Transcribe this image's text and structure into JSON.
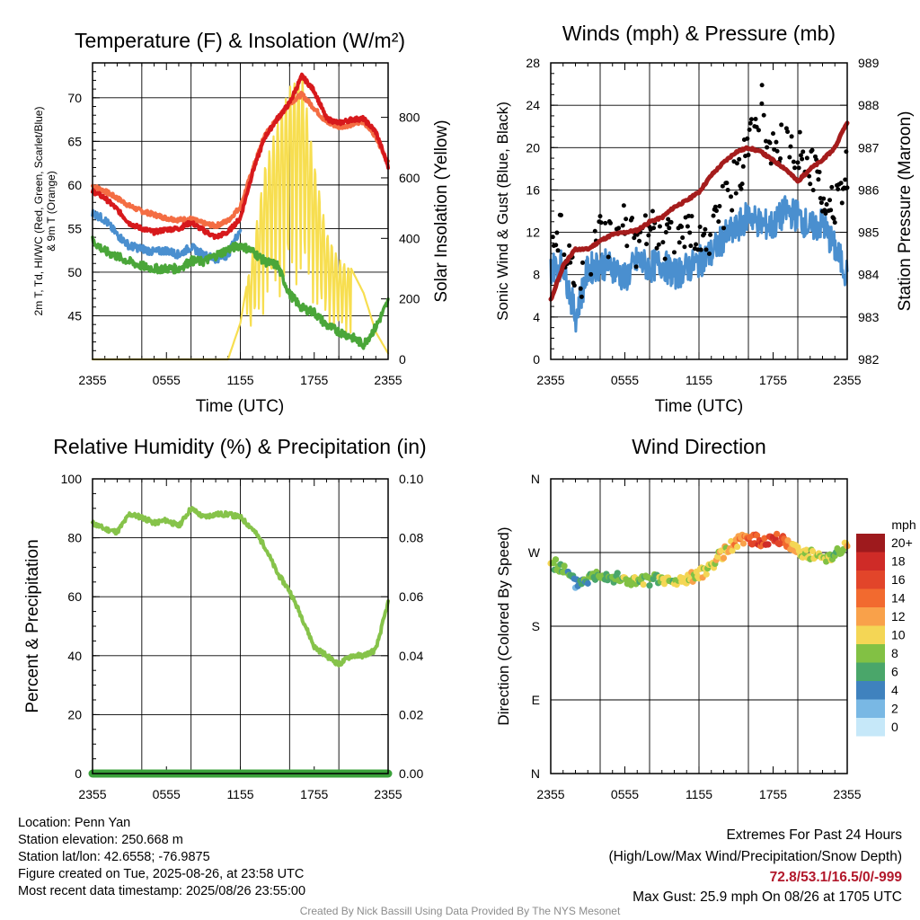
{
  "ticks": {
    "x_labels": [
      "2355",
      "0555",
      "1155",
      "1755",
      "2355"
    ],
    "x_title": "Time (UTC)"
  },
  "chart_data": [
    {
      "type": "line",
      "title": "Temperature (F) & Insolation (W/m²)",
      "xlabel": "Time (UTC)",
      "ylabel_left": "2m T, Td, HI/WC (Red, Green, Scarlet/Blue) & 9m T (Orange)",
      "ylabel_right": "Solar Insolation (Yellow)",
      "ylim_left": [
        40,
        74
      ],
      "ylim_right": [
        0,
        980
      ],
      "yticks_left": [
        45,
        50,
        55,
        60,
        65,
        70
      ],
      "yticks_right": [
        0,
        200,
        400,
        600,
        800
      ],
      "x_hours": [
        0,
        1,
        2,
        3,
        4,
        5,
        6,
        7,
        8,
        9,
        10,
        11,
        12,
        13,
        14,
        15,
        16,
        17,
        18,
        19,
        20,
        21,
        22,
        23,
        24
      ],
      "series": [
        {
          "name": "9m T",
          "color": "#f46d43",
          "values": [
            59.9,
            59.3,
            58.5,
            57.6,
            57.0,
            56.6,
            56.2,
            56.0,
            56.1,
            55.6,
            55.3,
            55.9,
            57.5,
            61.8,
            65.8,
            67.5,
            69.4,
            70.4,
            68.8,
            67.2,
            66.7,
            66.9,
            67.3,
            65.6,
            62.5
          ]
        },
        {
          "name": "2m T",
          "color": "#d7191c",
          "values": [
            59.3,
            58.5,
            57.2,
            55.6,
            55.0,
            54.6,
            54.9,
            55.0,
            55.7,
            54.8,
            54.0,
            54.6,
            56.2,
            61.5,
            65.5,
            67.6,
            69.4,
            72.5,
            70.8,
            67.6,
            67.1,
            67.5,
            67.6,
            66.1,
            62.2
          ]
        },
        {
          "name": "HI/WC",
          "color": "#4a8fcf",
          "values": [
            56.8,
            56.0,
            54.3,
            53.0,
            52.7,
            52.3,
            52.5,
            52.0,
            52.9,
            52.0,
            51.5,
            52.0,
            55.0
          ]
        },
        {
          "name": "2m Td",
          "color": "#4aa639",
          "values": [
            53.6,
            52.4,
            51.8,
            51.2,
            50.7,
            50.4,
            50.4,
            50.4,
            51.3,
            51.2,
            51.9,
            52.6,
            53.1,
            52.4,
            51.2,
            50.8,
            47.5,
            45.9,
            45.4,
            43.9,
            43.2,
            42.6,
            41.7,
            43.7,
            46.6
          ]
        },
        {
          "name": "Solar",
          "color": "#f7de50",
          "values": [
            0,
            0,
            0,
            0,
            0,
            0,
            0,
            0,
            0,
            0,
            0,
            0,
            120,
            360,
            640,
            780,
            900,
            950,
            650,
            420,
            330,
            300,
            220,
            90,
            20
          ]
        }
      ]
    },
    {
      "type": "line",
      "title": "Winds (mph) & Pressure (mb)",
      "xlabel": "Time (UTC)",
      "ylabel_left": "Sonic Wind & Gust (Blue, Black)",
      "ylabel_right": "Station Pressure (Maroon)",
      "ylim_left": [
        0,
        28
      ],
      "ylim_right": [
        982,
        989
      ],
      "yticks_left": [
        0,
        4,
        8,
        12,
        16,
        20,
        24,
        28
      ],
      "yticks_right": [
        982,
        983,
        984,
        985,
        986,
        987,
        988,
        989
      ],
      "x_hours": [
        0,
        1,
        2,
        3,
        4,
        5,
        6,
        7,
        8,
        9,
        10,
        11,
        12,
        13,
        14,
        15,
        16,
        17,
        18,
        19,
        20,
        21,
        22,
        23,
        24
      ],
      "series": [
        {
          "name": "Sonic Wind",
          "color": "#4a8fcf",
          "values": [
            8.6,
            9.0,
            4.0,
            8.5,
            9.0,
            8.8,
            7.6,
            9.3,
            8.7,
            9.1,
            8.0,
            8.6,
            9.2,
            10.0,
            11.5,
            12.2,
            13.7,
            12.8,
            12.6,
            14.0,
            13.6,
            12.4,
            12.8,
            10.5,
            8.0
          ]
        },
        {
          "name": "Gust",
          "color": "#000000",
          "values": [
            10.5,
            11.7,
            6.5,
            9.8,
            11.6,
            11.9,
            12.7,
            10.5,
            12.3,
            11.7,
            11.0,
            11.9,
            11.4,
            11.7,
            14.5,
            17.0,
            20.0,
            22.3,
            19.8,
            20.7,
            20.0,
            18.2,
            16.0,
            14.0,
            18.0
          ]
        },
        {
          "name": "Pressure",
          "color": "#a51c1c",
          "values": [
            983.4,
            984.2,
            984.6,
            984.6,
            984.8,
            984.95,
            985.0,
            985.05,
            985.25,
            985.35,
            985.6,
            985.75,
            985.95,
            986.35,
            986.65,
            986.9,
            987.0,
            986.9,
            986.7,
            986.5,
            986.2,
            986.5,
            986.7,
            987.0,
            987.6
          ]
        }
      ]
    },
    {
      "type": "line",
      "title": "Relative Humidity (%) & Precipitation (in)",
      "xlabel": "",
      "ylabel_left": "Percent & Precipitation",
      "ylim_left": [
        0,
        100
      ],
      "ylim_right": [
        0,
        0.1
      ],
      "yticks_left": [
        0,
        20,
        40,
        60,
        80,
        100
      ],
      "yticks_right": [
        "0.00",
        "0.02",
        "0.04",
        "0.06",
        "0.08",
        "0.10"
      ],
      "x_hours": [
        0,
        1,
        2,
        3,
        4,
        5,
        6,
        7,
        8,
        9,
        10,
        11,
        12,
        13,
        14,
        15,
        16,
        17,
        18,
        19,
        20,
        21,
        22,
        23,
        24
      ],
      "series": [
        {
          "name": "Relative Humidity",
          "color": "#86c34a",
          "values": [
            85,
            83,
            82,
            88,
            87,
            85,
            86,
            84,
            90,
            87,
            88,
            88,
            87,
            83,
            77,
            68,
            62,
            53,
            43,
            40,
            37,
            40,
            40,
            42,
            58
          ]
        },
        {
          "name": "Precipitation",
          "color": "#3aa13a",
          "values": [
            0,
            0,
            0,
            0,
            0,
            0,
            0,
            0,
            0,
            0,
            0,
            0,
            0,
            0,
            0,
            0,
            0,
            0,
            0,
            0,
            0,
            0,
            0,
            0,
            0
          ]
        }
      ]
    },
    {
      "type": "scatter",
      "title": "Wind Direction",
      "xlabel": "",
      "ylabel_left": "Direction (Colored By Speed)",
      "yticks_left": [
        "N",
        "E",
        "S",
        "W",
        "N"
      ],
      "ylim_left": [
        0,
        360
      ],
      "x_hours": [
        0,
        1,
        2,
        3,
        4,
        5,
        6,
        7,
        8,
        9,
        10,
        11,
        12,
        13,
        14,
        15,
        16,
        17,
        18,
        19,
        20,
        21,
        22,
        23,
        24
      ],
      "direction_deg": [
        258,
        250,
        232,
        238,
        245,
        240,
        236,
        234,
        236,
        237,
        233,
        238,
        242,
        255,
        270,
        282,
        288,
        283,
        287,
        283,
        273,
        268,
        262,
        270,
        278
      ],
      "speed_mph": [
        8,
        7,
        4,
        6,
        7,
        7,
        8,
        9,
        7,
        8,
        8,
        9,
        10,
        9,
        10,
        12,
        14,
        16,
        17,
        13,
        11,
        9,
        9,
        8,
        10
      ],
      "legend": {
        "title": "mph",
        "labels": [
          "20+",
          "18",
          "16",
          "14",
          "12",
          "10",
          "8",
          "6",
          "4",
          "2",
          "0"
        ],
        "colors": [
          "#9e1a1d",
          "#cf2b27",
          "#e2452a",
          "#f26a2f",
          "#f9a14a",
          "#f4d655",
          "#82c144",
          "#4aa66a",
          "#3f82be",
          "#79b8e4",
          "#c6e8f9"
        ]
      }
    }
  ],
  "info": {
    "location": "Location: Penn Yan",
    "elevation": "Station elevation: 250.668 m",
    "latlon": "Station lat/lon: 42.6558; -76.9875",
    "created": "Figure created on Tue, 2025-08-26, at 23:58 UTC",
    "recent": "Most recent data timestamp: 2025/08/26 23:55:00"
  },
  "extremes": {
    "line1": "Extremes For Past 24 Hours",
    "line2": "(High/Low/Max Wind/Precipitation/Snow Depth)",
    "values": "72.8/53.1/16.5/0/-999",
    "gust": "Max Gust: 25.9 mph On 08/26 at 1705 UTC"
  },
  "credit": "Created By Nick Bassill Using Data Provided By The NYS Mesonet"
}
